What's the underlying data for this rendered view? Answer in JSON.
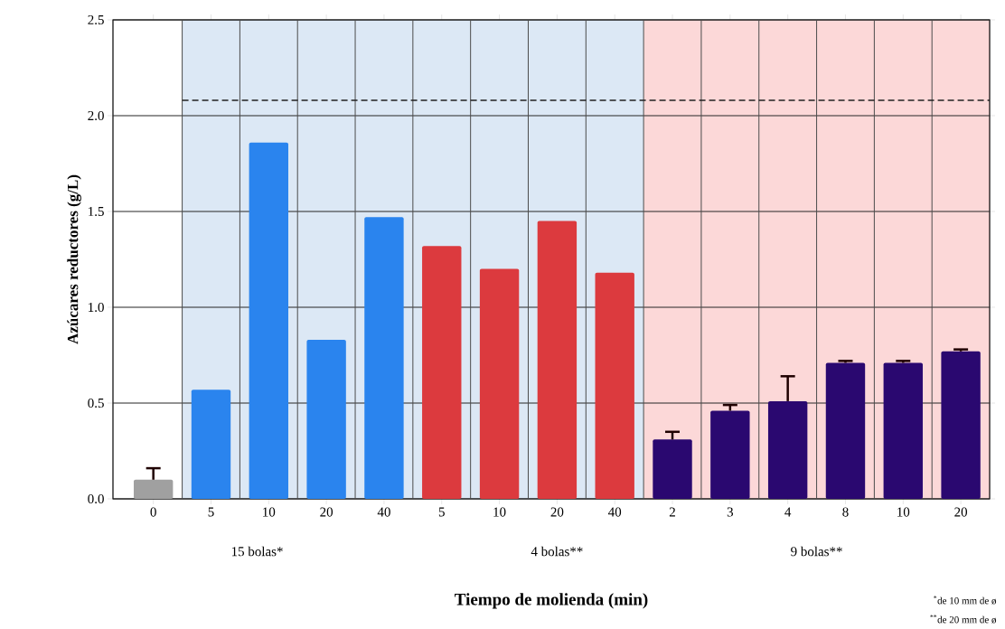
{
  "chart_data": {
    "type": "bar",
    "xlabel": "Tiempo de molienda (min)",
    "ylabel": "Azúcares reductores (g/L)",
    "categories": [
      "0",
      "5",
      "10",
      "20",
      "40",
      "5",
      "10",
      "20",
      "40",
      "2",
      "3",
      "4",
      "8",
      "10",
      "20"
    ],
    "values": [
      0.1,
      0.57,
      1.86,
      0.83,
      1.47,
      1.32,
      1.2,
      1.45,
      1.18,
      0.31,
      0.46,
      0.51,
      0.71,
      0.71,
      0.77
    ],
    "colors": [
      "#a0a0a0",
      "#2a84ee",
      "#2a84ee",
      "#2a84ee",
      "#2a84ee",
      "#dc3a3e",
      "#dc3a3e",
      "#dc3a3e",
      "#dc3a3e",
      "#2a0870",
      "#2a0870",
      "#2a0870",
      "#2a0870",
      "#2a0870",
      "#2a0870"
    ],
    "errors": [
      [
        0.1,
        0.16
      ],
      null,
      null,
      null,
      null,
      null,
      null,
      null,
      null,
      [
        0.31,
        0.35
      ],
      [
        0.46,
        0.49
      ],
      [
        0.51,
        0.64
      ],
      [
        0.71,
        0.72
      ],
      [
        0.71,
        0.72
      ],
      [
        0.77,
        0.78
      ]
    ],
    "ylim": [
      0,
      2.5
    ],
    "yticks": [
      {
        "value": 0,
        "label": "0.0"
      },
      0.5,
      {
        "value": 1,
        "label": "1.0"
      },
      1.5,
      {
        "value": 2,
        "label": "2.0"
      },
      2.5
    ],
    "grid": true,
    "ref_lines": [
      {
        "axis": "y",
        "value": 2.08,
        "line_style": "dashed",
        "color": "#222222"
      }
    ],
    "annotations": [
      "15 bolas*",
      "4 bolas**",
      "9 bolas**",
      "$^{*}$de 10 mm de ø",
      "$^{**}$de 20 mm de ø"
    ]
  }
}
